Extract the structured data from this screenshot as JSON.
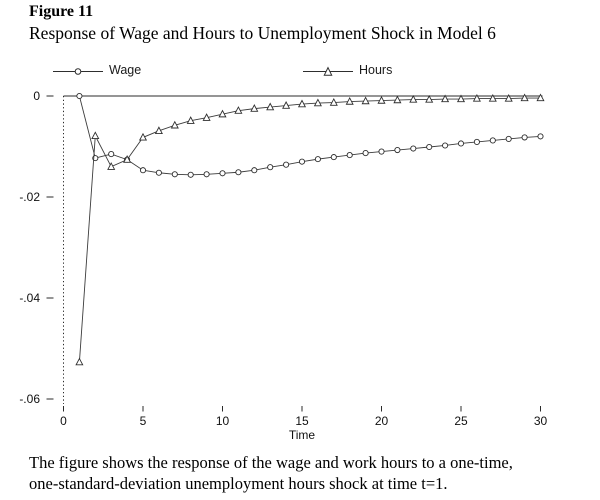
{
  "header": {
    "figure_label": "Figure 11",
    "title": "Response of Wage and Hours to Unemployment Shock in Model 6"
  },
  "caption": {
    "line1": "The figure shows the response of the wage and work hours to a one-time,",
    "line2": "one-standard-deviation unemployment hours shock at time t=1."
  },
  "chart_data": {
    "type": "line",
    "title": "Response of Wage and Hours to Unemployment Shock in Model 6",
    "xlabel": "Time",
    "ylabel": "",
    "xlim": [
      0,
      31
    ],
    "ylim": [
      -0.06,
      0
    ],
    "grid": false,
    "legend_position": "top",
    "xtick_values": [
      0,
      5,
      10,
      15,
      20,
      25,
      30
    ],
    "xtick_labels": [
      "0",
      "5",
      "10",
      "15",
      "20",
      "25",
      "30"
    ],
    "ytick_values": [
      0,
      -0.02,
      -0.04,
      -0.06
    ],
    "ytick_labels": [
      "0",
      "-.02",
      "-.04",
      "-.06"
    ],
    "x": [
      1,
      2,
      3,
      4,
      5,
      6,
      7,
      8,
      9,
      10,
      11,
      12,
      13,
      14,
      15,
      16,
      17,
      18,
      19,
      20,
      21,
      22,
      23,
      24,
      25,
      26,
      27,
      28,
      29,
      30
    ],
    "series": [
      {
        "name": "Wage",
        "marker": "circle",
        "values": [
          0.0,
          -0.0123,
          -0.0115,
          -0.0126,
          -0.0147,
          -0.0152,
          -0.0155,
          -0.0156,
          -0.0155,
          -0.0153,
          -0.0151,
          -0.0147,
          -0.0141,
          -0.0136,
          -0.013,
          -0.0125,
          -0.0121,
          -0.0117,
          -0.0113,
          -0.011,
          -0.0107,
          -0.0104,
          -0.0101,
          -0.0098,
          -0.0094,
          -0.0091,
          -0.0088,
          -0.0085,
          -0.0082,
          -0.008
        ]
      },
      {
        "name": "Hours",
        "marker": "triangle",
        "values": [
          -0.0527,
          -0.0079,
          -0.014,
          -0.0126,
          -0.0082,
          -0.0069,
          -0.0058,
          -0.0049,
          -0.0043,
          -0.0036,
          -0.0029,
          -0.0025,
          -0.0022,
          -0.0019,
          -0.0016,
          -0.0014,
          -0.0013,
          -0.0011,
          -0.001,
          -0.0009,
          -0.0008,
          -0.0007,
          -0.0007,
          -0.0006,
          -0.0006,
          -0.0005,
          -0.0005,
          -0.0005,
          -0.0004,
          -0.0004
        ]
      }
    ]
  }
}
